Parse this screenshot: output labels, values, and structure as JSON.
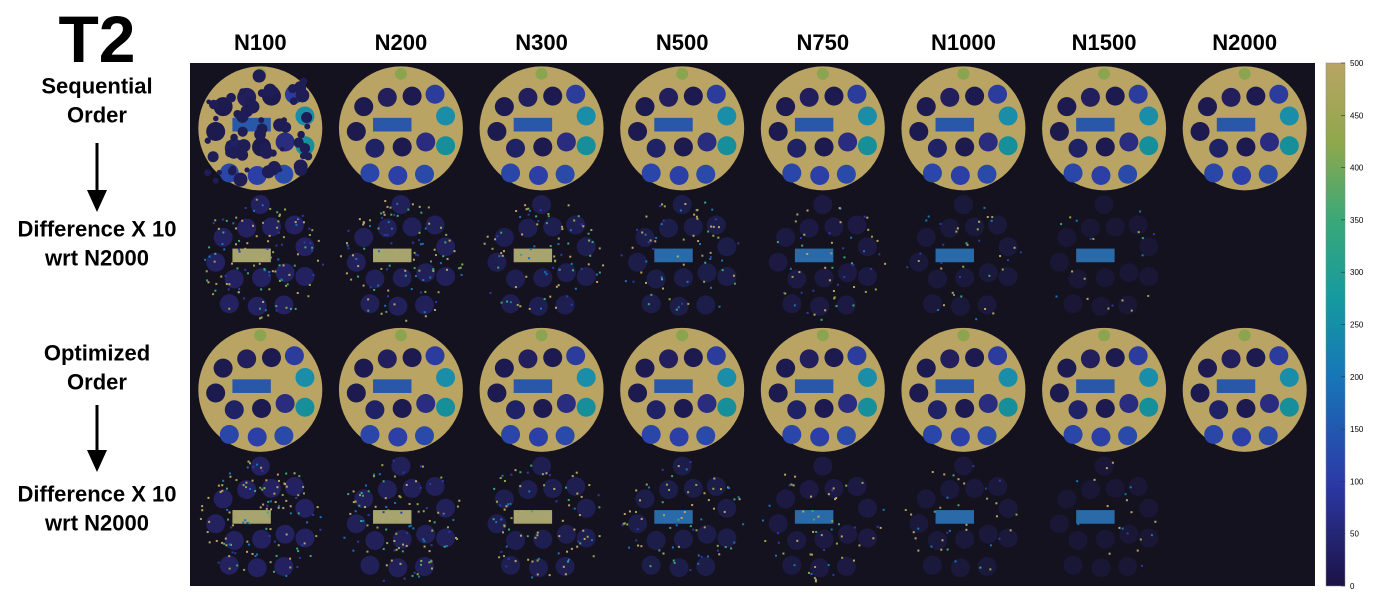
{
  "title": "T2",
  "columns": [
    "N100",
    "N200",
    "N300",
    "N500",
    "N750",
    "N1000",
    "N1500",
    "N2000"
  ],
  "rows": [
    {
      "label": [
        "Sequential",
        "Order"
      ]
    },
    {
      "label": [
        "Difference X 10",
        "wrt N2000"
      ]
    },
    {
      "label": [
        "Optimized",
        "Order"
      ]
    },
    {
      "label": [
        "Difference X 10",
        "wrt N2000"
      ]
    }
  ],
  "colorbar": {
    "range": [
      0,
      500
    ],
    "ticks": [
      0,
      50,
      100,
      150,
      200,
      250,
      300,
      350,
      400,
      450,
      500
    ]
  }
}
